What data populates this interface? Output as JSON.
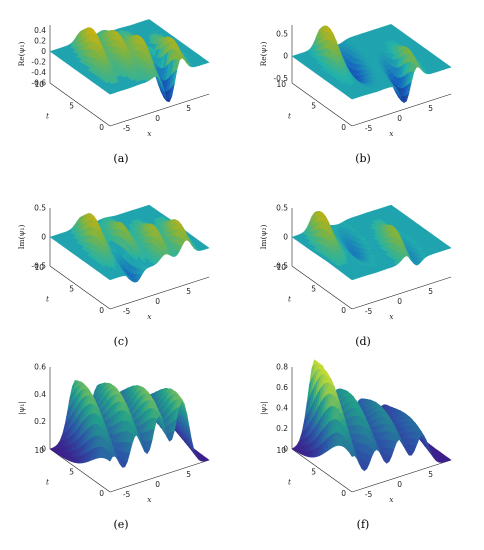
{
  "figure": {
    "panels": [
      {
        "caption": "(a)",
        "zlabel": "Re(ψ₁)",
        "ylabel": "t",
        "xlabel": "x",
        "z_ticks": [
          "0.4",
          "0.2",
          "0",
          "-0.2",
          "-0.4",
          "-0.6"
        ],
        "t_ticks": [
          "10",
          "5",
          "0"
        ],
        "x_ticks": [
          "-5",
          "0",
          "5"
        ]
      },
      {
        "caption": "(b)",
        "zlabel": "Re(ψ₂)",
        "ylabel": "t",
        "xlabel": "x",
        "z_ticks": [
          "0.5",
          "0",
          "-0.5"
        ],
        "t_ticks": [
          "10",
          "5",
          "0"
        ],
        "x_ticks": [
          "-5",
          "0",
          "5"
        ]
      },
      {
        "caption": "(c)",
        "zlabel": "Im(ψ₁)",
        "ylabel": "t",
        "xlabel": "x",
        "z_ticks": [
          "0.5",
          "0",
          "-0.5"
        ],
        "t_ticks": [
          "10",
          "5",
          "0"
        ],
        "x_ticks": [
          "-5",
          "0",
          "5"
        ]
      },
      {
        "caption": "(d)",
        "zlabel": "Im(ψ₂)",
        "ylabel": "t",
        "xlabel": "x",
        "z_ticks": [
          "0.5",
          "0",
          "-0.5"
        ],
        "t_ticks": [
          "10",
          "5",
          "0"
        ],
        "x_ticks": [
          "-5",
          "0",
          "5"
        ]
      },
      {
        "caption": "(e)",
        "zlabel": "|ψ₁|",
        "ylabel": "t",
        "xlabel": "x",
        "z_ticks": [
          "0.6",
          "0.4",
          "0.2",
          "0"
        ],
        "t_ticks": [
          "10",
          "5",
          "0"
        ],
        "x_ticks": [
          "-5",
          "0",
          "5"
        ]
      },
      {
        "caption": "(f)",
        "zlabel": "|ψ₂|",
        "ylabel": "t",
        "xlabel": "x",
        "z_ticks": [
          "0.8",
          "0.6",
          "0.4",
          "0.2",
          "0"
        ],
        "t_ticks": [
          "10",
          "5",
          "0"
        ],
        "x_ticks": [
          "-5",
          "0",
          "5"
        ]
      }
    ]
  },
  "chart_data": [
    {
      "type": "surface",
      "panel": "(a)",
      "zlabel": "Re(ψ₁)",
      "xlabel": "x",
      "ylabel": "t",
      "xlim": [
        -8,
        8
      ],
      "ylim": [
        0,
        10
      ],
      "zlim": [
        -0.6,
        0.5
      ],
      "colormap": "teal-green-yellow",
      "peaks": [
        {
          "x": -4,
          "t": 7,
          "z": 0.5
        },
        {
          "x": -1,
          "t": 6,
          "z": 0.4
        },
        {
          "x": 1,
          "t": 4,
          "z": 0.4
        },
        {
          "x": 4,
          "t": 2,
          "z": 0.45
        },
        {
          "x": 2,
          "t": 1,
          "z": -0.6
        }
      ]
    },
    {
      "type": "surface",
      "panel": "(b)",
      "zlabel": "Re(ψ₂)",
      "xlabel": "x",
      "ylabel": "t",
      "xlim": [
        -8,
        8
      ],
      "ylim": [
        0,
        10
      ],
      "zlim": [
        -0.6,
        0.7
      ],
      "colormap": "teal-green-yellow",
      "peaks": [
        {
          "x": -4,
          "t": 8,
          "z": 0.65
        },
        {
          "x": -2,
          "t": 6,
          "z": -0.4
        },
        {
          "x": 3,
          "t": 2,
          "z": 0.45
        },
        {
          "x": 1,
          "t": 1,
          "z": -0.55
        }
      ]
    },
    {
      "type": "surface",
      "panel": "(c)",
      "zlabel": "Im(ψ₁)",
      "xlabel": "x",
      "ylabel": "t",
      "xlim": [
        -8,
        8
      ],
      "ylim": [
        0,
        10
      ],
      "zlim": [
        -0.5,
        0.5
      ],
      "colormap": "teal-green-yellow",
      "peaks": [
        {
          "x": -4,
          "t": 7,
          "z": 0.45
        },
        {
          "x": -1,
          "t": 5,
          "z": 0.35
        },
        {
          "x": 2,
          "t": 3,
          "z": 0.35
        },
        {
          "x": 5,
          "t": 2,
          "z": 0.4
        },
        {
          "x": -3,
          "t": 2,
          "z": -0.3
        }
      ]
    },
    {
      "type": "surface",
      "panel": "(d)",
      "zlabel": "Im(ψ₂)",
      "xlabel": "x",
      "ylabel": "t",
      "xlim": [
        -8,
        8
      ],
      "ylim": [
        0,
        10
      ],
      "zlim": [
        -0.5,
        0.5
      ],
      "colormap": "teal-green-yellow",
      "peaks": [
        {
          "x": -5,
          "t": 8,
          "z": 0.45
        },
        {
          "x": -2,
          "t": 6,
          "z": -0.2
        },
        {
          "x": 2,
          "t": 3,
          "z": 0.35
        },
        {
          "x": 3,
          "t": 2,
          "z": -0.2
        }
      ]
    },
    {
      "type": "surface",
      "panel": "(e)",
      "zlabel": "|ψ₁|",
      "xlabel": "x",
      "ylabel": "t",
      "xlim": [
        -8,
        8
      ],
      "ylim": [
        0,
        10
      ],
      "zlim": [
        0,
        0.6
      ],
      "colormap": "viridis",
      "peaks": [
        {
          "x": -5,
          "t": 7,
          "z": 0.5
        },
        {
          "x": -2,
          "t": 5,
          "z": 0.5
        },
        {
          "x": 1,
          "t": 3,
          "z": 0.5
        },
        {
          "x": 4,
          "t": 1,
          "z": 0.5
        }
      ]
    },
    {
      "type": "surface",
      "panel": "(f)",
      "zlabel": "|ψ₂|",
      "xlabel": "x",
      "ylabel": "t",
      "xlim": [
        -8,
        8
      ],
      "ylim": [
        0,
        10
      ],
      "zlim": [
        0,
        0.8
      ],
      "colormap": "viridis",
      "peaks": [
        {
          "x": -5,
          "t": 8,
          "z": 0.85
        },
        {
          "x": -2,
          "t": 6,
          "z": 0.55
        },
        {
          "x": 1,
          "t": 4,
          "z": 0.45
        },
        {
          "x": 4,
          "t": 2,
          "z": 0.35
        }
      ]
    }
  ]
}
